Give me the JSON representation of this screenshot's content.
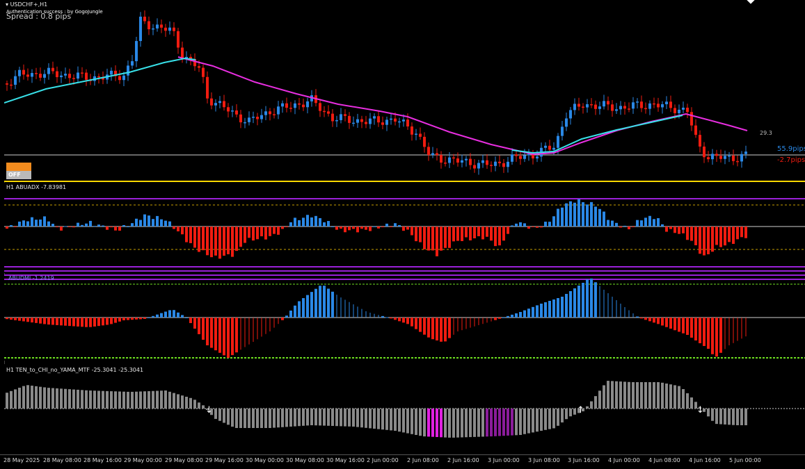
{
  "chart": {
    "symbol_label": "USDCHF+,H1",
    "auth_text": "Authentication success : by GogoJungle",
    "spread_text": "Spread : 0.8 pips",
    "off_button_label": "OFF",
    "level_value": "29.3",
    "pips_up": "55.9pips",
    "pips_down": "-2.7pips"
  },
  "indicators": {
    "adx_label": "H1 ABUADX -7.83981",
    "dmi_label": "ABUDMI -1.2419",
    "tenchi_label": "H1  TEN_to_CHI_no_YAMA_MTF  -25.3041 -25.3041"
  },
  "time_axis": [
    "28 May 2025",
    "28 May 08:00",
    "28 May 16:00",
    "29 May 00:00",
    "29 May 08:00",
    "29 May 16:00",
    "30 May 00:00",
    "30 May 08:00",
    "30 May 16:00",
    "2 Jun 00:00",
    "2 Jun 08:00",
    "2 Jun 16:00",
    "3 Jun 00:00",
    "3 Jun 08:00",
    "3 Jun 16:00",
    "4 Jun 00:00",
    "4 Jun 08:00",
    "4 Jun 16:00",
    "5 Jun 00:00"
  ],
  "colors": {
    "bull": "#2a88e6",
    "bear": "#f01c10",
    "ma_fast": "#38e0e8",
    "ma_slow": "#e82ee0",
    "hist_gray": "#8a8a8a",
    "hist_magenta": "#e020e0",
    "hist_purple": "#8a1c9a",
    "level_purple": "#9a20d8",
    "level_yellow": "#ffd800",
    "level_green": "#6ee020",
    "off_top": "#f28c1e"
  }
}
